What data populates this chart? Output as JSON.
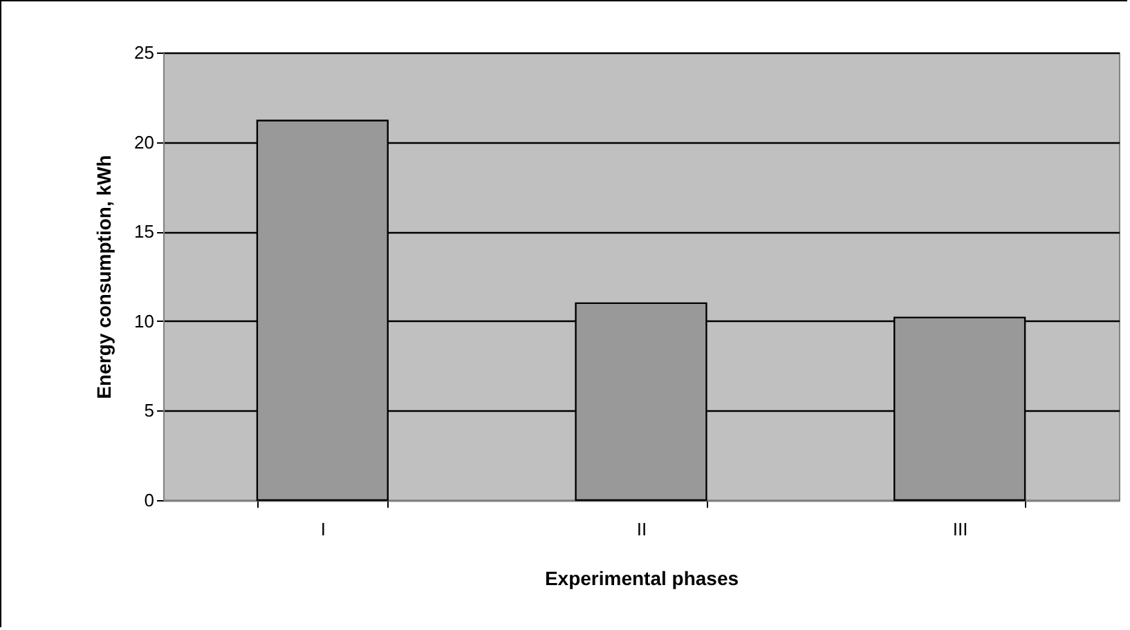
{
  "chart_data": {
    "type": "bar",
    "xlabel": "Experimental phases",
    "ylabel": "Energy consumption, kWh",
    "categories": [
      "I",
      "II",
      "III"
    ],
    "values": [
      21.2,
      11.0,
      10.2
    ],
    "color": "#999999",
    "ylim": [
      0,
      25
    ],
    "yticks": [
      0,
      5,
      10,
      15,
      20,
      25
    ],
    "grid": "y"
  }
}
